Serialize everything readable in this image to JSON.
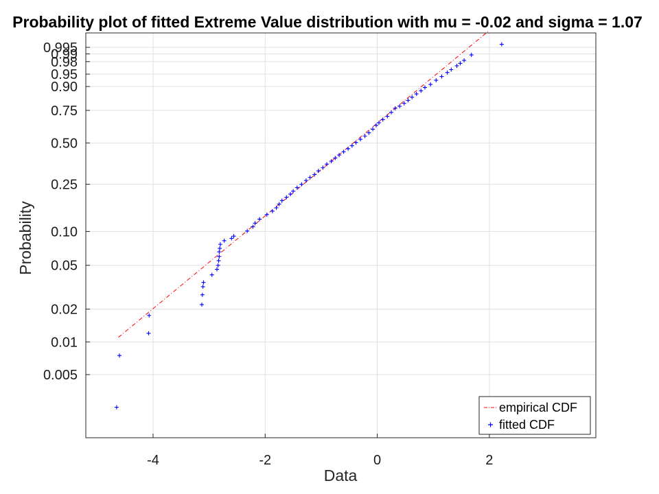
{
  "chart_data": {
    "type": "scatter",
    "title": "Probability plot of fitted Extreme Value distribution with mu = -0.02 and sigma = 1.07",
    "xlabel": "Data",
    "ylabel": "Probability",
    "xlim": [
      -5.2,
      3.9
    ],
    "x_ticks": [
      {
        "value": -4,
        "label": "-4"
      },
      {
        "value": -2,
        "label": "-2"
      },
      {
        "value": 0,
        "label": "0"
      },
      {
        "value": 2,
        "label": "2"
      }
    ],
    "y_scale": "extreme-value probability",
    "y_ticks": [
      {
        "value": 0.005,
        "label": "0.005"
      },
      {
        "value": 0.01,
        "label": "0.01"
      },
      {
        "value": 0.02,
        "label": "0.02"
      },
      {
        "value": 0.05,
        "label": "0.05"
      },
      {
        "value": 0.1,
        "label": "0.10"
      },
      {
        "value": 0.25,
        "label": "0.25"
      },
      {
        "value": 0.5,
        "label": "0.50"
      },
      {
        "value": 0.75,
        "label": "0.75"
      },
      {
        "value": 0.9,
        "label": "0.90"
      },
      {
        "value": 0.95,
        "label": "0.95"
      },
      {
        "value": 0.98,
        "label": "0.98"
      },
      {
        "value": 0.99,
        "label": "0.99"
      },
      {
        "value": 0.995,
        "label": "0.995"
      }
    ],
    "grid": true,
    "legend_position": "bottom-right",
    "colors": {
      "empirical": "#ff0000",
      "fitted": "#0000ff",
      "grid": "#e0e0e0",
      "axis": "#262626"
    },
    "series": [
      {
        "name": "empirical CDF",
        "style": "dash-dot line",
        "x": [
          -4.62,
          2.0
        ],
        "y": [
          0.011,
          0.9995
        ]
      },
      {
        "name": "fitted CDF",
        "style": "plus markers",
        "x": [
          -4.65,
          -4.6,
          -4.08,
          -4.07,
          -3.13,
          -3.12,
          -3.11,
          -3.1,
          -2.95,
          -2.86,
          -2.84,
          -2.83,
          -2.82,
          -2.82,
          -2.81,
          -2.8,
          -2.73,
          -2.6,
          -2.56,
          -2.32,
          -2.22,
          -2.18,
          -2.1,
          -1.97,
          -1.87,
          -1.8,
          -1.75,
          -1.7,
          -1.62,
          -1.55,
          -1.5,
          -1.43,
          -1.35,
          -1.27,
          -1.2,
          -1.12,
          -1.05,
          -0.97,
          -0.9,
          -0.82,
          -0.75,
          -0.68,
          -0.6,
          -0.52,
          -0.45,
          -0.38,
          -0.3,
          -0.22,
          -0.15,
          -0.08,
          -0.02,
          0.03,
          0.1,
          0.18,
          0.25,
          0.32,
          0.4,
          0.48,
          0.55,
          0.62,
          0.7,
          0.78,
          0.85,
          0.95,
          1.05,
          1.15,
          1.25,
          1.32,
          1.42,
          1.48,
          1.55,
          1.68,
          2.22
        ],
        "y": [
          0.0025,
          0.0075,
          0.012,
          0.0175,
          0.022,
          0.027,
          0.032,
          0.035,
          0.041,
          0.046,
          0.05,
          0.055,
          0.06,
          0.066,
          0.071,
          0.077,
          0.083,
          0.087,
          0.091,
          0.101,
          0.11,
          0.118,
          0.128,
          0.14,
          0.15,
          0.16,
          0.172,
          0.184,
          0.196,
          0.208,
          0.22,
          0.235,
          0.25,
          0.268,
          0.283,
          0.298,
          0.318,
          0.336,
          0.357,
          0.375,
          0.395,
          0.415,
          0.437,
          0.458,
          0.48,
          0.503,
          0.527,
          0.552,
          0.577,
          0.605,
          0.635,
          0.655,
          0.68,
          0.705,
          0.735,
          0.765,
          0.78,
          0.8,
          0.82,
          0.84,
          0.86,
          0.878,
          0.895,
          0.91,
          0.928,
          0.942,
          0.955,
          0.963,
          0.972,
          0.977,
          0.982,
          0.989,
          0.9965
        ]
      }
    ]
  }
}
